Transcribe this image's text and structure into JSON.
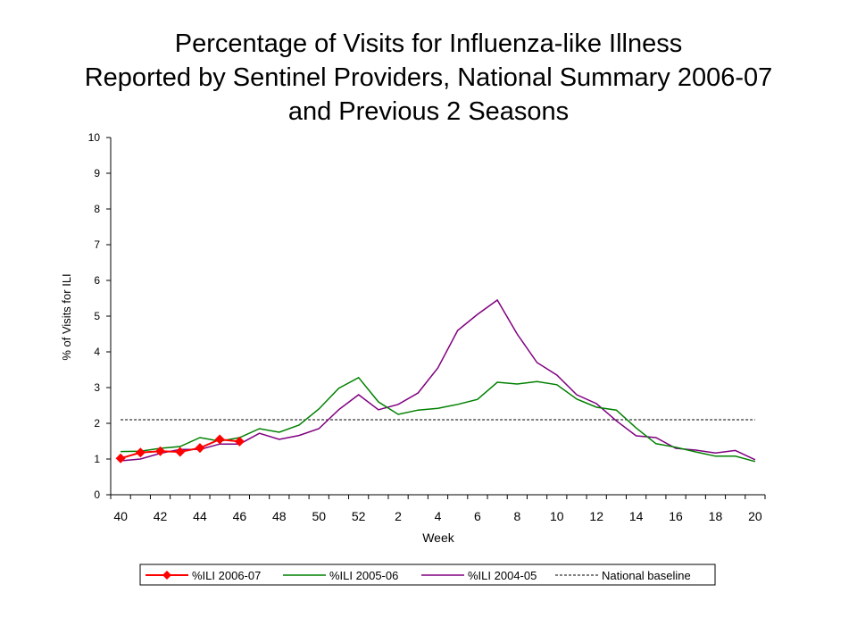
{
  "chart_data": {
    "type": "line",
    "title": [
      "Percentage of Visits for Influenza-like Illness",
      "Reported by Sentinel Providers, National Summary 2006-07",
      "and Previous 2 Seasons"
    ],
    "xlabel": "Week",
    "ylabel": "% of Visits for ILI",
    "ylim": [
      0,
      10
    ],
    "yticks": [
      0,
      1,
      2,
      3,
      4,
      5,
      6,
      7,
      8,
      9,
      10
    ],
    "weeks": [
      40,
      41,
      42,
      43,
      44,
      45,
      46,
      47,
      48,
      49,
      50,
      51,
      52,
      1,
      2,
      3,
      4,
      5,
      6,
      7,
      8,
      9,
      10,
      11,
      12,
      13,
      14,
      15,
      16,
      17,
      18,
      19,
      20
    ],
    "xtick_labels": [
      "40",
      "42",
      "44",
      "46",
      "48",
      "50",
      "52",
      "2",
      "4",
      "6",
      "8",
      "10",
      "12",
      "14",
      "16",
      "18",
      "20"
    ],
    "series": [
      {
        "name": "%ILI 2006-07",
        "color": "#ff0000",
        "marker": "diamond",
        "values": [
          1.02,
          1.18,
          1.22,
          1.2,
          1.31,
          1.55,
          1.49
        ]
      },
      {
        "name": "%ILI 2005-06",
        "color": "#008000",
        "marker": "none",
        "values": [
          1.21,
          1.22,
          1.3,
          1.35,
          1.6,
          1.5,
          1.6,
          1.85,
          1.75,
          1.95,
          2.4,
          2.98,
          3.28,
          2.6,
          2.25,
          2.37,
          2.42,
          2.53,
          2.67,
          3.15,
          3.1,
          3.17,
          3.08,
          2.68,
          2.45,
          2.37,
          1.87,
          1.43,
          1.33,
          1.2,
          1.08,
          1.08,
          0.93
        ]
      },
      {
        "name": "%ILI 2004-05",
        "color": "#800080",
        "marker": "none",
        "values": [
          0.95,
          1.0,
          1.16,
          1.27,
          1.27,
          1.42,
          1.42,
          1.72,
          1.55,
          1.66,
          1.85,
          2.38,
          2.8,
          2.38,
          2.53,
          2.85,
          3.55,
          4.6,
          5.05,
          5.45,
          4.5,
          3.7,
          3.35,
          2.8,
          2.55,
          2.07,
          1.65,
          1.6,
          1.3,
          1.25,
          1.17,
          1.24,
          0.98
        ]
      }
    ],
    "baseline": {
      "name": "National baseline",
      "value": 2.1,
      "color": "#000000",
      "style": "dotted"
    },
    "legend": {
      "position": "bottom"
    },
    "grid": false
  }
}
